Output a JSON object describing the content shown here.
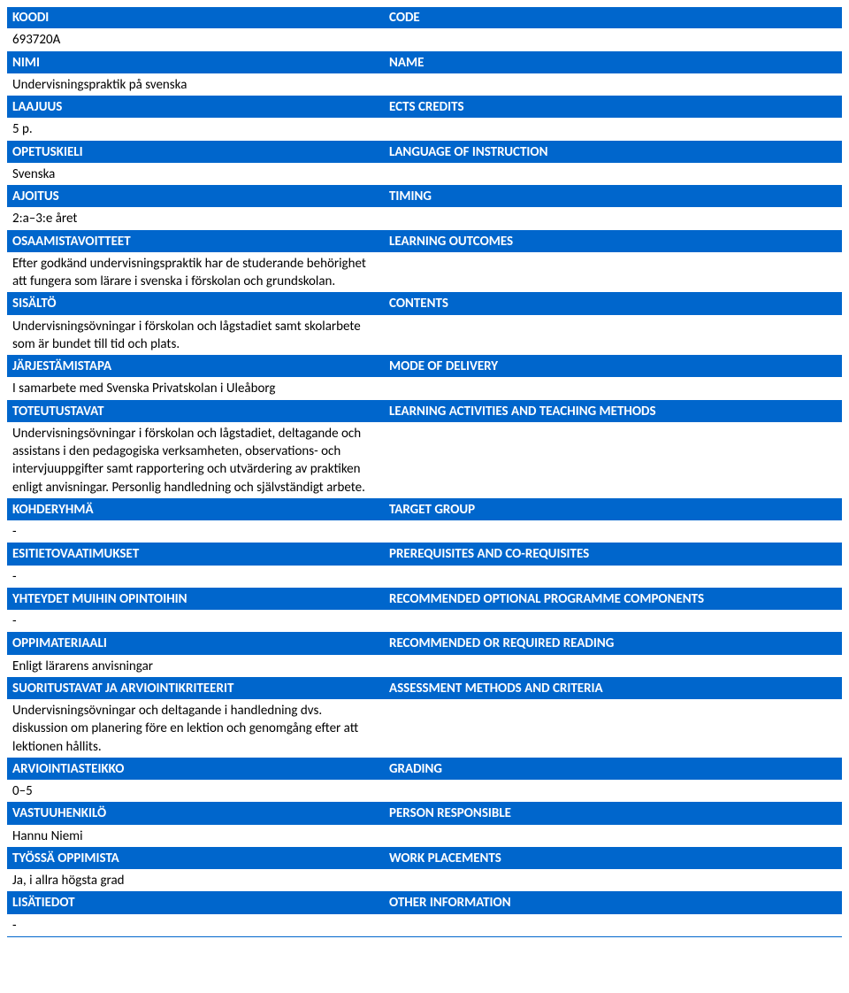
{
  "rows": [
    {
      "type": "header",
      "left_key": "koodi_h",
      "right_key": "code_h",
      "koodi_h": "KOODI",
      "code_h": "CODE"
    },
    {
      "type": "content",
      "left_key": "koodi_v",
      "right_key": "code_v",
      "koodi_v": "693720A",
      "code_v": ""
    },
    {
      "type": "header",
      "left_key": "nimi_h",
      "right_key": "name_h",
      "nimi_h": "NIMI",
      "name_h": "NAME"
    },
    {
      "type": "content",
      "left_key": "nimi_v",
      "right_key": "name_v",
      "nimi_v": "Undervisningspraktik på svenska",
      "name_v": ""
    },
    {
      "type": "header",
      "left_key": "laajuus_h",
      "right_key": "ects_h",
      "laajuus_h": "LAAJUUS",
      "ects_h": "ECTS CREDITS"
    },
    {
      "type": "content",
      "left_key": "laajuus_v",
      "right_key": "ects_v",
      "laajuus_v": "5 p.",
      "ects_v": ""
    },
    {
      "type": "header",
      "left_key": "opetus_h",
      "right_key": "lang_h",
      "opetus_h": "OPETUSKIELI",
      "lang_h": "LANGUAGE OF INSTRUCTION"
    },
    {
      "type": "content",
      "left_key": "opetus_v",
      "right_key": "lang_v",
      "opetus_v": "Svenska",
      "lang_v": ""
    },
    {
      "type": "header",
      "left_key": "ajoitus_h",
      "right_key": "timing_h",
      "ajoitus_h": "AJOITUS",
      "timing_h": "TIMING"
    },
    {
      "type": "content",
      "left_key": "ajoitus_v",
      "right_key": "timing_v",
      "ajoitus_v": "2:a–3:e året",
      "timing_v": ""
    },
    {
      "type": "header",
      "left_key": "osaa_h",
      "right_key": "learn_h",
      "osaa_h": "OSAAMISTAVOITTEET",
      "learn_h": "LEARNING OUTCOMES"
    },
    {
      "type": "content",
      "left_key": "osaa_v",
      "right_key": "learn_v",
      "osaa_v": "Efter godkänd undervisningspraktik har de studerande behörighet att fungera som lärare i svenska i förskolan och grundskolan.",
      "learn_v": ""
    },
    {
      "type": "header",
      "left_key": "sis_h",
      "right_key": "cont_h",
      "sis_h": "SISÄLTÖ",
      "cont_h": "CONTENTS"
    },
    {
      "type": "content",
      "left_key": "sis_v",
      "right_key": "cont_v",
      "sis_v": "Undervisningsövningar i förskolan och lågstadiet samt skolarbete som är bundet till tid och plats.",
      "cont_v": ""
    },
    {
      "type": "header",
      "left_key": "jarj_h",
      "right_key": "mode_h",
      "jarj_h": "JÄRJESTÄMISTAPA",
      "mode_h": "MODE OF DELIVERY"
    },
    {
      "type": "content",
      "left_key": "jarj_v",
      "right_key": "mode_v",
      "jarj_v": "I samarbete med Svenska Privatskolan i Uleåborg",
      "mode_v": ""
    },
    {
      "type": "header",
      "left_key": "tot_h",
      "right_key": "lat_h",
      "tot_h": "TOTEUTUSTAVAT",
      "lat_h": "LEARNING ACTIVITIES AND TEACHING METHODS"
    },
    {
      "type": "content",
      "left_key": "tot_v",
      "right_key": "lat_v",
      "tot_v": "Undervisningsövningar i förskolan och lågstadiet, deltagande och assistans i den pedagogiska verksamheten, observations- och intervjuuppgifter samt rapportering och utvärdering av praktiken enligt anvisningar. Personlig handledning och självständigt arbete.",
      "lat_v": ""
    },
    {
      "type": "header",
      "left_key": "koh_h",
      "right_key": "tgt_h",
      "koh_h": "KOHDERYHMÄ",
      "tgt_h": "TARGET GROUP"
    },
    {
      "type": "content",
      "left_key": "koh_v",
      "right_key": "tgt_v",
      "koh_v": "-",
      "tgt_v": ""
    },
    {
      "type": "header",
      "left_key": "esi_h",
      "right_key": "pre_h",
      "esi_h": "ESITIETOVAATIMUKSET",
      "pre_h": "PREREQUISITES AND CO-REQUISITES"
    },
    {
      "type": "content",
      "left_key": "esi_v",
      "right_key": "pre_v",
      "esi_v": "-",
      "pre_v": ""
    },
    {
      "type": "header",
      "left_key": "yht_h",
      "right_key": "rec_h",
      "yht_h": "YHTEYDET MUIHIN OPINTOIHIN",
      "rec_h": "RECOMMENDED OPTIONAL PROGRAMME COMPONENTS"
    },
    {
      "type": "content",
      "left_key": "yht_v",
      "right_key": "rec_v",
      "yht_v": "-",
      "rec_v": ""
    },
    {
      "type": "header",
      "left_key": "opp_h",
      "right_key": "read_h",
      "opp_h": "OPPIMATERIAALI",
      "read_h": "RECOMMENDED OR REQUIRED READING"
    },
    {
      "type": "content",
      "left_key": "opp_v",
      "right_key": "read_v",
      "opp_v": "Enligt lärarens anvisningar",
      "read_v": ""
    },
    {
      "type": "header",
      "left_key": "suo_h",
      "right_key": "ass_h",
      "suo_h": "SUORITUSTAVAT JA ARVIOINTIKRITEERIT",
      "ass_h": "ASSESSMENT METHODS AND CRITERIA"
    },
    {
      "type": "content",
      "left_key": "suo_v",
      "right_key": "ass_v",
      "suo_v": "Undervisningsövningar och deltagande i handledning dvs. diskussion om planering före en lektion och genomgång efter att lektionen hållits.",
      "ass_v": ""
    },
    {
      "type": "header",
      "left_key": "arv_h",
      "right_key": "grd_h",
      "arv_h": "ARVIOINTIASTEIKKO",
      "grd_h": "GRADING"
    },
    {
      "type": "content",
      "left_key": "arv_v",
      "right_key": "grd_v",
      "arv_v": "0–5",
      "grd_v": ""
    },
    {
      "type": "header",
      "left_key": "vas_h",
      "right_key": "per_h",
      "vas_h": "VASTUUHENKILÖ",
      "per_h": "PERSON RESPONSIBLE"
    },
    {
      "type": "content",
      "left_key": "vas_v",
      "right_key": "per_v",
      "vas_v": "Hannu Niemi",
      "per_v": ""
    },
    {
      "type": "header",
      "left_key": "tyo_h",
      "right_key": "wrk_h",
      "tyo_h": "TYÖSSÄ OPPIMISTA",
      "wrk_h": "WORK PLACEMENTS"
    },
    {
      "type": "content",
      "left_key": "tyo_v",
      "right_key": "wrk_v",
      "tyo_v": "Ja, i allra högsta grad",
      "wrk_v": ""
    },
    {
      "type": "header",
      "left_key": "lis_h",
      "right_key": "oth_h",
      "lis_h": "LISÄTIEDOT",
      "oth_h": "OTHER INFORMATION"
    },
    {
      "type": "content",
      "left_key": "lis_v",
      "right_key": "oth_v",
      "lis_v": "-",
      "oth_v": ""
    }
  ],
  "colors": {
    "header_bg": "#0066cc",
    "header_fg": "#ffffff",
    "content_bg": "#ffffff",
    "content_fg": "#000000",
    "divider": "#0066cc"
  }
}
